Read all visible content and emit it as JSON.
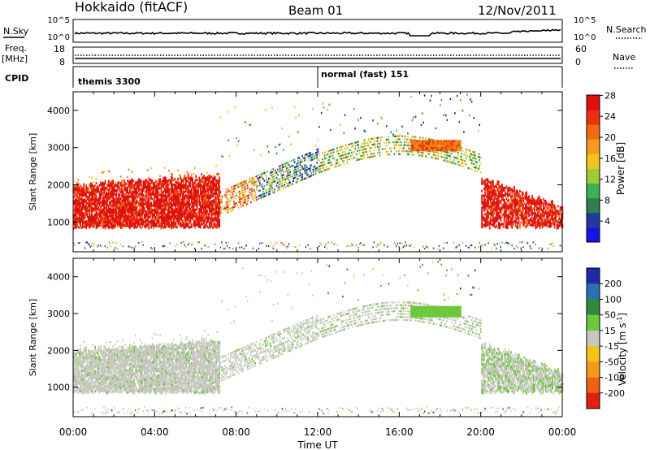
{
  "header": {
    "title": "Hokkaido (fitACF)",
    "beam": "Beam 01",
    "date": "12/Nov/2011"
  },
  "noise_panel": {
    "left_label": "N.Sky",
    "left_ticks": [
      "10^5",
      "10^0"
    ],
    "right_ticks": [
      "10^5",
      "10^0"
    ],
    "right_label": "N.Search"
  },
  "freq_panel": {
    "left_label_1": "Freq.",
    "left_label_2": "[MHz]",
    "left_ticks": [
      "18",
      "8"
    ],
    "right_ticks": [
      "60",
      "0"
    ],
    "right_label": "Nave"
  },
  "cpid_panel": {
    "label": "CPID",
    "segment_1": "themis 3300",
    "segment_2": "normal (fast) 151"
  },
  "chart_data": [
    {
      "type": "heatmap",
      "name": "power",
      "ylabel": "Slant Range [km]",
      "xlabel": "Time UT",
      "x_ticks": [
        "00:00",
        "04:00",
        "08:00",
        "12:00",
        "16:00",
        "20:00",
        "00:00"
      ],
      "y_ticks": [
        1000,
        2000,
        3000,
        4000
      ],
      "ylim": [
        200,
        4500
      ],
      "colorbar": {
        "label": "Power [dB]",
        "ticks": [
          "4",
          "8",
          "12",
          "16",
          "20",
          "24",
          "28"
        ],
        "colors": [
          "#1414e6",
          "#1e3ca0",
          "#2f7f4a",
          "#3fae5a",
          "#9ccd32",
          "#f2c31c",
          "#f59a1a",
          "#f06a12",
          "#e8320e",
          "#e01010"
        ]
      }
    },
    {
      "type": "heatmap",
      "name": "velocity",
      "ylabel": "Slant Range [km]",
      "xlabel": "Time UT",
      "x_ticks": [
        "00:00",
        "04:00",
        "08:00",
        "12:00",
        "16:00",
        "20:00",
        "00:00"
      ],
      "y_ticks": [
        1000,
        2000,
        3000,
        4000
      ],
      "ylim": [
        200,
        4500
      ],
      "colorbar": {
        "label": "Velocity [m s",
        "label_sup": "-1",
        "label_end": "]",
        "ticks": [
          "200",
          "100",
          "50",
          "15",
          "-15",
          "-50",
          "-100",
          "-200"
        ],
        "colors": [
          "#1e2aa8",
          "#2d6fb0",
          "#2f8a3a",
          "#6cc83a",
          "#c8c8c0",
          "#f0c418",
          "#f29a18",
          "#ee6212",
          "#e02010"
        ]
      }
    }
  ],
  "x_axis": {
    "ticks": [
      "00:00",
      "04:00",
      "08:00",
      "12:00",
      "16:00",
      "20:00",
      "00:00"
    ],
    "label": "Time UT"
  }
}
